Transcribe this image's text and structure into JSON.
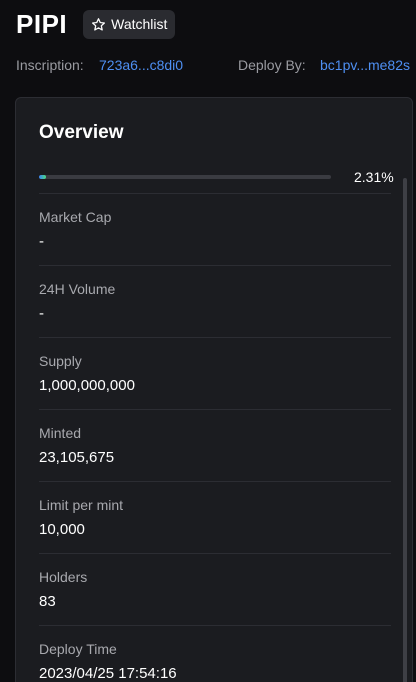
{
  "token": {
    "name": "PIPI",
    "watchlist_label": "Watchlist"
  },
  "meta": {
    "inscription_label": "Inscription:",
    "inscription_value": "723a6...c8di0",
    "deploy_label": "Deploy By:",
    "deploy_value": "bc1pv...me82s"
  },
  "overview": {
    "title": "Overview",
    "progress": {
      "percent": 2.31,
      "label": "2.31%"
    },
    "stats": [
      {
        "label": "Market Cap",
        "value": "-"
      },
      {
        "label": "24H Volume",
        "value": "-"
      },
      {
        "label": "Supply",
        "value": "1,000,000,000"
      },
      {
        "label": "Minted",
        "value": "23,105,675"
      },
      {
        "label": "Limit per mint",
        "value": "10,000"
      },
      {
        "label": "Holders",
        "value": "83"
      },
      {
        "label": "Deploy Time",
        "value": "2023/04/25 17:54:16"
      }
    ]
  },
  "colors": {
    "background": "#0d0d10",
    "card": "#1b1c20",
    "link": "#4e8ff2",
    "progress_start": "#3b82f6",
    "progress_end": "#4ade80"
  }
}
